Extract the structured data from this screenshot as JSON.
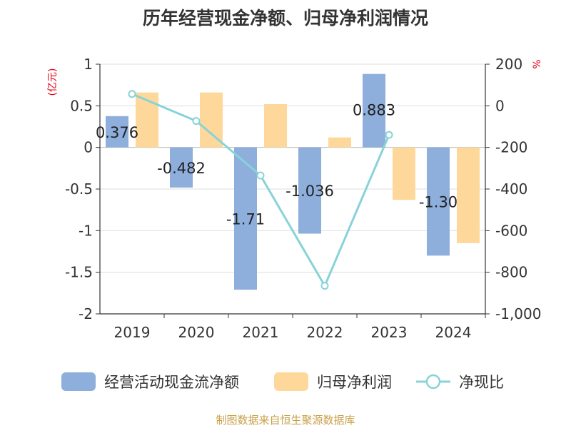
{
  "chart_data": {
    "type": "bar",
    "title": "历年经营现金净额、归母净利润情况",
    "source": "制图数据来自恒生聚源数据库",
    "categories": [
      "2019",
      "2020",
      "2021",
      "2022",
      "2023",
      "2024"
    ],
    "left_axis": {
      "unit": "(亿元)",
      "ylim": [
        -2,
        1
      ],
      "ticks": [
        1,
        0.5,
        0,
        -0.5,
        -1,
        -1.5,
        -2
      ],
      "tick_labels": [
        "1",
        "0.5",
        "0",
        "-0.5",
        "-1",
        "-1.5",
        "-2"
      ]
    },
    "right_axis": {
      "unit": "%",
      "ylim": [
        -1000,
        200
      ],
      "ticks": [
        200,
        0,
        -200,
        -400,
        -600,
        -800,
        -1000
      ],
      "tick_labels": [
        "200",
        "0",
        "-200",
        "-400",
        "-600",
        "-800",
        "-1,000"
      ]
    },
    "series": [
      {
        "name": "经营活动现金流净额",
        "type": "bar",
        "axis": "left",
        "color": "#8eaedc",
        "values": [
          0.376,
          -0.482,
          -1.71,
          -1.036,
          0.883,
          -1.3
        ],
        "labels": [
          "0.376",
          "-0.482",
          "-1.71",
          "-1.036",
          "0.883",
          "-1.30"
        ]
      },
      {
        "name": "归母净利润",
        "type": "bar",
        "axis": "left",
        "color": "#fdd89a",
        "values": [
          0.66,
          0.66,
          0.52,
          0.12,
          -0.63,
          -1.15
        ]
      },
      {
        "name": "净现比",
        "type": "line",
        "axis": "right",
        "color": "#88d3d8",
        "values": [
          57,
          -73,
          -335,
          -865,
          -140,
          null
        ]
      }
    ],
    "grid": true,
    "legend_position": "bottom"
  }
}
